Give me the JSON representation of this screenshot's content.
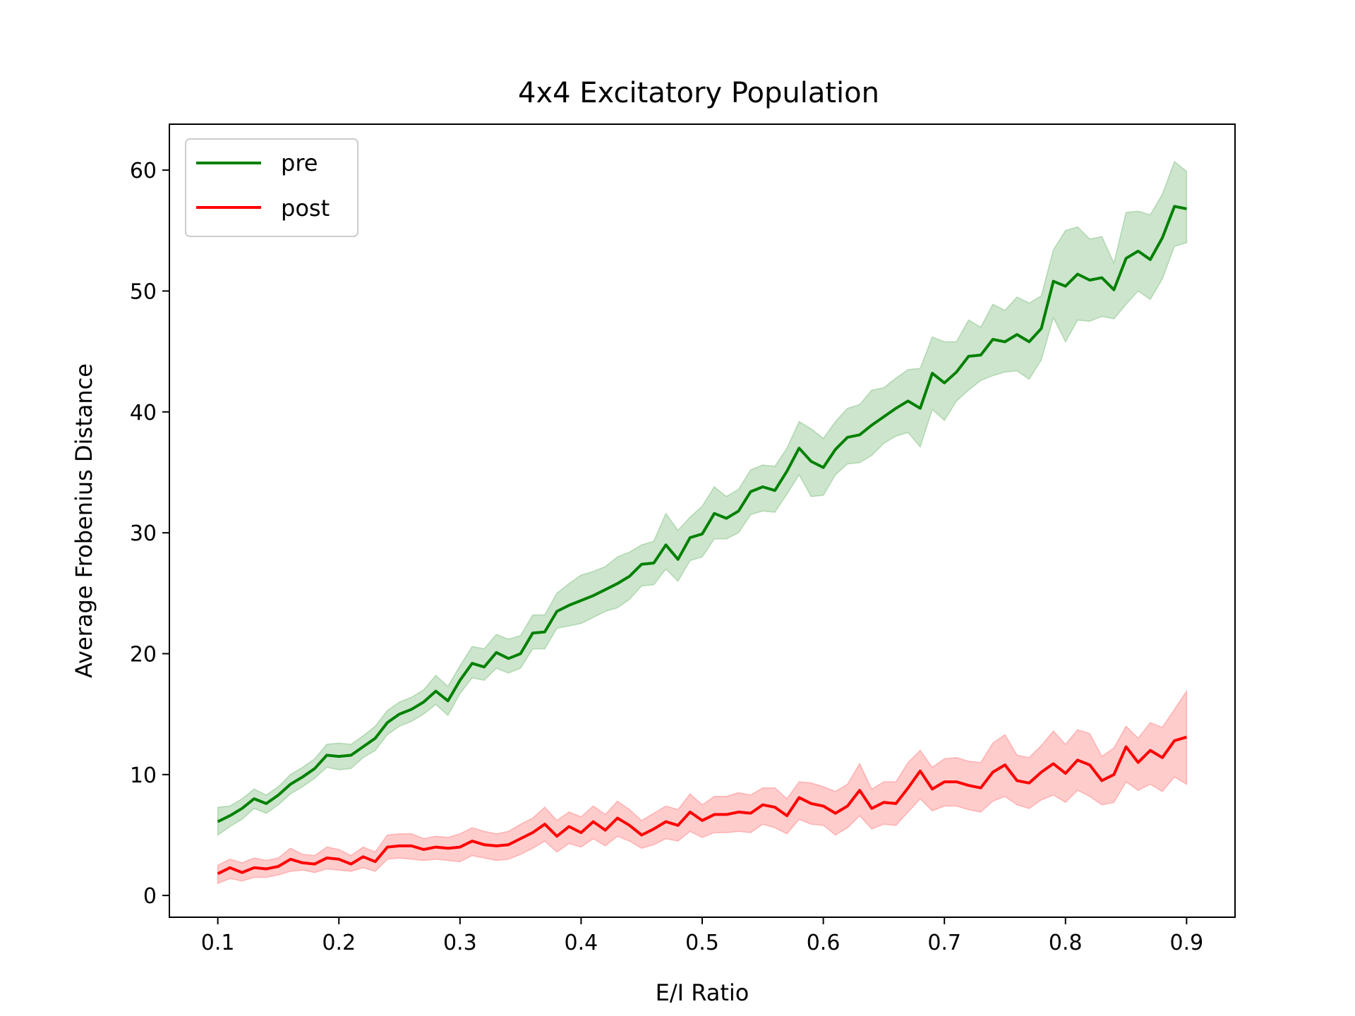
{
  "chart_data": {
    "type": "line",
    "title": "4x4 Excitatory Population",
    "xlabel": "E/I Ratio",
    "ylabel": "Average Frobenius Distance",
    "xlim": [
      0.06,
      0.94
    ],
    "ylim": [
      -1.8,
      63.8
    ],
    "xticks": [
      0.1,
      0.2,
      0.3,
      0.4,
      0.5,
      0.6,
      0.7,
      0.8,
      0.9
    ],
    "xtick_labels": [
      "0.1",
      "0.2",
      "0.3",
      "0.4",
      "0.5",
      "0.6",
      "0.7",
      "0.8",
      "0.9"
    ],
    "yticks": [
      0,
      10,
      20,
      30,
      40,
      50,
      60
    ],
    "ytick_labels": [
      "0",
      "10",
      "20",
      "30",
      "40",
      "50",
      "60"
    ],
    "grid": false,
    "legend": {
      "position": "top-left",
      "entries": [
        "pre",
        "post"
      ]
    },
    "x": [
      0.1,
      0.11,
      0.12,
      0.13,
      0.14,
      0.15,
      0.16,
      0.17,
      0.18,
      0.19,
      0.2,
      0.21,
      0.22,
      0.23,
      0.24,
      0.25,
      0.26,
      0.27,
      0.28,
      0.29,
      0.3,
      0.31,
      0.32,
      0.33,
      0.34,
      0.35,
      0.36,
      0.37,
      0.38,
      0.39,
      0.4,
      0.41,
      0.42,
      0.43,
      0.44,
      0.45,
      0.46,
      0.47,
      0.48,
      0.49,
      0.5,
      0.51,
      0.52,
      0.53,
      0.54,
      0.55,
      0.56,
      0.57,
      0.58,
      0.59,
      0.6,
      0.61,
      0.62,
      0.63,
      0.64,
      0.65,
      0.66,
      0.67,
      0.68,
      0.69,
      0.7,
      0.71,
      0.72,
      0.73,
      0.74,
      0.75,
      0.76,
      0.77,
      0.78,
      0.79,
      0.8,
      0.81,
      0.82,
      0.83,
      0.84,
      0.85,
      0.86,
      0.87,
      0.88,
      0.89,
      0.9
    ],
    "series": [
      {
        "name": "pre",
        "color": "#008000",
        "band_color": "#7fbf7f",
        "values": [
          6.1,
          6.6,
          7.2,
          8.0,
          7.6,
          8.3,
          9.2,
          9.8,
          10.5,
          11.6,
          11.5,
          11.6,
          12.3,
          13.0,
          14.3,
          15.0,
          15.4,
          16.0,
          16.9,
          16.1,
          17.8,
          19.2,
          18.9,
          20.1,
          19.6,
          20.0,
          21.7,
          21.8,
          23.5,
          24.0,
          24.4,
          24.8,
          25.3,
          25.8,
          26.4,
          27.4,
          27.5,
          29.0,
          27.8,
          29.6,
          29.9,
          31.6,
          31.2,
          31.8,
          33.4,
          33.8,
          33.5,
          35.1,
          37.0,
          35.9,
          35.4,
          36.9,
          37.9,
          38.1,
          38.9,
          39.6,
          40.3,
          40.9,
          40.3,
          43.2,
          42.4,
          43.3,
          44.6,
          44.7,
          46.0,
          45.8,
          46.4,
          45.8,
          46.9,
          50.8,
          50.4,
          51.4,
          50.9,
          51.1,
          50.1,
          52.7,
          53.3,
          52.6,
          54.4,
          57.0,
          56.8
        ],
        "lower": [
          5.0,
          5.7,
          6.3,
          7.2,
          6.8,
          7.5,
          8.4,
          9.0,
          9.7,
          10.6,
          10.4,
          10.5,
          11.4,
          12.0,
          13.3,
          14.0,
          14.4,
          15.0,
          15.8,
          14.9,
          16.7,
          18.0,
          17.8,
          18.8,
          18.4,
          18.8,
          20.4,
          20.4,
          22.1,
          22.3,
          22.5,
          23.0,
          23.5,
          23.8,
          24.5,
          25.6,
          25.7,
          27.0,
          26.0,
          27.7,
          28.0,
          29.5,
          29.5,
          30.0,
          31.5,
          31.8,
          31.7,
          33.2,
          34.8,
          33.0,
          33.1,
          34.8,
          35.7,
          35.8,
          36.4,
          37.4,
          38.0,
          38.3,
          37.1,
          40.2,
          39.3,
          40.9,
          41.8,
          42.6,
          43.0,
          43.3,
          43.4,
          42.7,
          44.3,
          47.8,
          45.8,
          47.6,
          47.5,
          47.9,
          47.7,
          48.9,
          50.0,
          49.3,
          51.0,
          53.7,
          54.0
        ],
        "upper": [
          7.3,
          7.4,
          8.0,
          8.8,
          8.3,
          9.0,
          10.0,
          10.6,
          11.3,
          12.5,
          12.6,
          12.5,
          13.2,
          14.0,
          15.3,
          16.0,
          16.4,
          17.0,
          18.2,
          17.3,
          19.0,
          20.6,
          20.4,
          21.6,
          21.2,
          21.5,
          23.2,
          23.2,
          25.0,
          25.8,
          26.5,
          26.8,
          27.2,
          28.0,
          28.4,
          29.0,
          29.3,
          31.6,
          30.2,
          31.3,
          32.2,
          33.8,
          33.0,
          33.6,
          35.2,
          35.6,
          35.5,
          37.0,
          39.2,
          38.6,
          37.8,
          39.2,
          40.3,
          40.6,
          41.8,
          42.0,
          42.8,
          43.5,
          43.6,
          46.2,
          45.8,
          45.8,
          47.6,
          47.0,
          48.9,
          48.4,
          49.5,
          49.0,
          49.6,
          53.4,
          55.0,
          55.3,
          54.3,
          54.5,
          52.3,
          56.5,
          56.6,
          56.3,
          58.0,
          60.7,
          59.9
        ]
      },
      {
        "name": "post",
        "color": "#ff0000",
        "band_color": "#ff7f7f",
        "values": [
          1.8,
          2.3,
          1.9,
          2.3,
          2.2,
          2.4,
          3.0,
          2.7,
          2.6,
          3.1,
          3.0,
          2.6,
          3.2,
          2.8,
          4.0,
          4.1,
          4.1,
          3.8,
          4.0,
          3.9,
          4.0,
          4.5,
          4.2,
          4.1,
          4.2,
          4.7,
          5.2,
          5.9,
          4.9,
          5.7,
          5.2,
          6.1,
          5.4,
          6.4,
          5.8,
          5.0,
          5.5,
          6.1,
          5.8,
          6.9,
          6.2,
          6.7,
          6.7,
          6.9,
          6.8,
          7.5,
          7.3,
          6.6,
          8.1,
          7.6,
          7.4,
          6.8,
          7.4,
          8.7,
          7.2,
          7.7,
          7.6,
          8.9,
          10.3,
          8.8,
          9.4,
          9.4,
          9.1,
          8.9,
          10.2,
          10.8,
          9.5,
          9.3,
          10.2,
          10.9,
          10.1,
          11.2,
          10.8,
          9.5,
          10.0,
          12.3,
          11.0,
          12.0,
          11.4,
          12.8,
          13.1
        ],
        "lower": [
          1.0,
          1.4,
          1.2,
          1.5,
          1.5,
          1.7,
          2.0,
          2.1,
          1.9,
          2.2,
          2.1,
          2.0,
          2.3,
          2.0,
          3.0,
          3.1,
          3.0,
          2.9,
          3.0,
          2.9,
          2.8,
          3.3,
          3.1,
          2.9,
          3.0,
          3.4,
          3.9,
          4.5,
          3.6,
          4.3,
          4.0,
          4.7,
          4.1,
          4.9,
          4.5,
          3.9,
          4.2,
          4.7,
          4.5,
          5.3,
          4.8,
          5.2,
          5.2,
          5.3,
          5.2,
          5.9,
          5.6,
          5.1,
          6.3,
          5.9,
          5.8,
          5.0,
          5.6,
          6.6,
          5.5,
          5.9,
          5.8,
          6.9,
          8.0,
          7.0,
          7.4,
          7.4,
          7.1,
          6.9,
          7.8,
          8.2,
          7.5,
          7.2,
          7.9,
          8.3,
          7.7,
          8.7,
          8.2,
          7.5,
          7.7,
          9.4,
          8.7,
          9.2,
          8.6,
          9.8,
          9.2
        ],
        "upper": [
          2.5,
          3.0,
          2.7,
          3.1,
          2.9,
          3.1,
          3.9,
          3.4,
          3.3,
          4.0,
          3.8,
          3.3,
          4.0,
          3.6,
          5.0,
          5.1,
          5.1,
          4.7,
          4.9,
          4.8,
          5.1,
          5.6,
          5.3,
          5.1,
          5.3,
          5.9,
          6.4,
          7.3,
          6.2,
          6.9,
          6.5,
          7.4,
          6.7,
          7.8,
          7.1,
          6.2,
          6.8,
          7.4,
          7.1,
          8.4,
          7.5,
          8.2,
          8.2,
          8.5,
          8.3,
          8.9,
          8.9,
          8.0,
          9.4,
          9.3,
          9.0,
          8.6,
          9.2,
          10.9,
          8.8,
          9.4,
          9.4,
          11.0,
          12.0,
          10.6,
          11.3,
          11.4,
          11.1,
          11.0,
          12.6,
          13.3,
          11.6,
          11.4,
          12.4,
          13.6,
          12.5,
          13.7,
          13.4,
          11.5,
          12.2,
          14.0,
          13.0,
          14.3,
          13.9,
          15.4,
          16.9
        ]
      }
    ]
  }
}
